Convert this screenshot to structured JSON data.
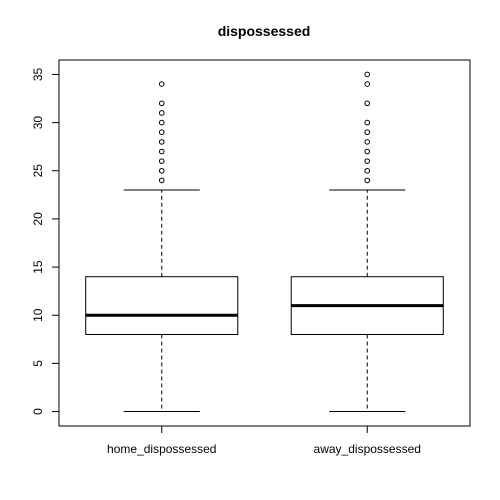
{
  "chart_data": {
    "type": "boxplot",
    "title": "dispossessed",
    "xlabel": "",
    "ylabel": "",
    "ylim": [
      -1.5,
      36.5
    ],
    "yticks": [
      0,
      5,
      10,
      15,
      20,
      25,
      30,
      35
    ],
    "grid": false,
    "legend": "none",
    "categories": [
      "home_dispossessed",
      "away_dispossessed"
    ],
    "boxes": [
      {
        "name": "home_dispossessed",
        "min": 0,
        "q1": 8,
        "median": 10,
        "q3": 14,
        "max": 23,
        "outliers": [
          24,
          25,
          26,
          27,
          28,
          29,
          30,
          31,
          32,
          34
        ]
      },
      {
        "name": "away_dispossessed",
        "min": 0,
        "q1": 8,
        "median": 11,
        "q3": 14,
        "max": 23,
        "outliers": [
          24,
          25,
          26,
          27,
          28,
          29,
          30,
          32,
          34,
          35
        ]
      }
    ]
  }
}
